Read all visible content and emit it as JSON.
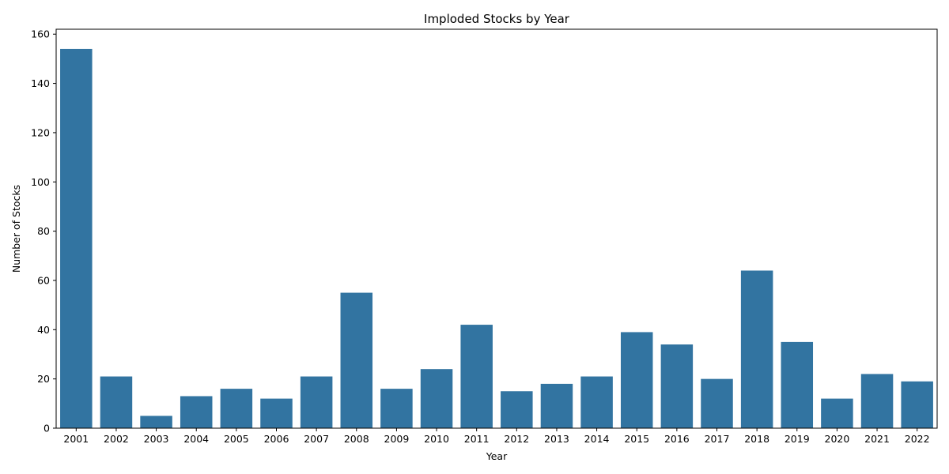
{
  "chart_data": {
    "type": "bar",
    "title": "Imploded Stocks by Year",
    "xlabel": "Year",
    "ylabel": "Number of Stocks",
    "categories": [
      "2001",
      "2002",
      "2003",
      "2004",
      "2005",
      "2006",
      "2007",
      "2008",
      "2009",
      "2010",
      "2011",
      "2012",
      "2013",
      "2014",
      "2015",
      "2016",
      "2017",
      "2018",
      "2019",
      "2020",
      "2021",
      "2022"
    ],
    "values": [
      154,
      21,
      5,
      13,
      16,
      12,
      21,
      55,
      16,
      24,
      42,
      15,
      18,
      21,
      39,
      34,
      20,
      64,
      35,
      12,
      22,
      19
    ],
    "ylim": [
      0,
      162
    ],
    "yticks": [
      0,
      20,
      40,
      60,
      80,
      100,
      120,
      140,
      160
    ],
    "bar_color": "#3274a1",
    "grid": false,
    "legend": "none"
  }
}
